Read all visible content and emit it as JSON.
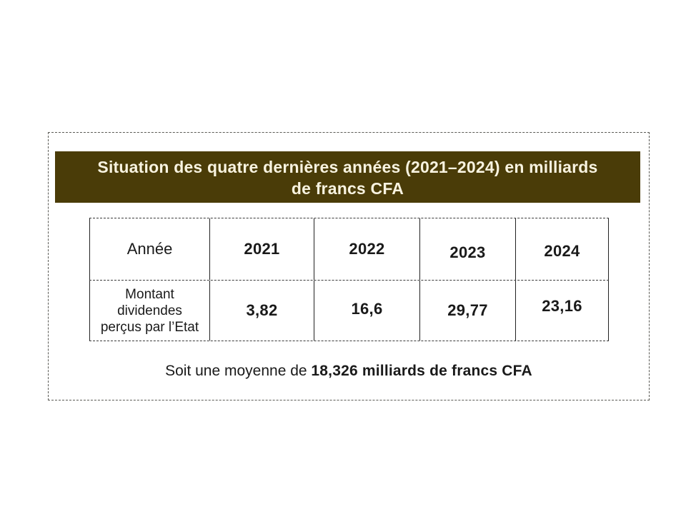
{
  "header": {
    "title_line1": "Situation des quatre dernières années (2021–2024) en milliards",
    "title_line2": "de francs CFA"
  },
  "table": {
    "row_header_label": "Année",
    "years": [
      "2021",
      "2022",
      "2023",
      "2024"
    ],
    "row_label": "Montant dividendes perçus par l’Etat",
    "values": [
      "3,82",
      "16,6",
      "29,77",
      "23,16"
    ]
  },
  "footer": {
    "prefix": "Soit une moyenne de",
    "highlight": "18,326 milliards de francs CFA"
  },
  "colors": {
    "header_bg": "#4a3c08",
    "header_text": "#f8f3e0",
    "body_text": "#1a1a1a",
    "table_border": "#222222",
    "dashed_border": "#5a5a55"
  },
  "chart_data": {
    "type": "table",
    "title": "Situation des quatre dernières années (2021–2024) en milliards de francs CFA",
    "categories": [
      "2021",
      "2022",
      "2023",
      "2024"
    ],
    "series": [
      {
        "name": "Montant dividendes perçus par l’Etat",
        "values": [
          3.82,
          16.6,
          29.77,
          23.16
        ]
      }
    ],
    "annotation": "Soit une moyenne de 18,326 milliards de francs CFA",
    "average_value": 18.326,
    "unit": "milliards de francs CFA"
  }
}
